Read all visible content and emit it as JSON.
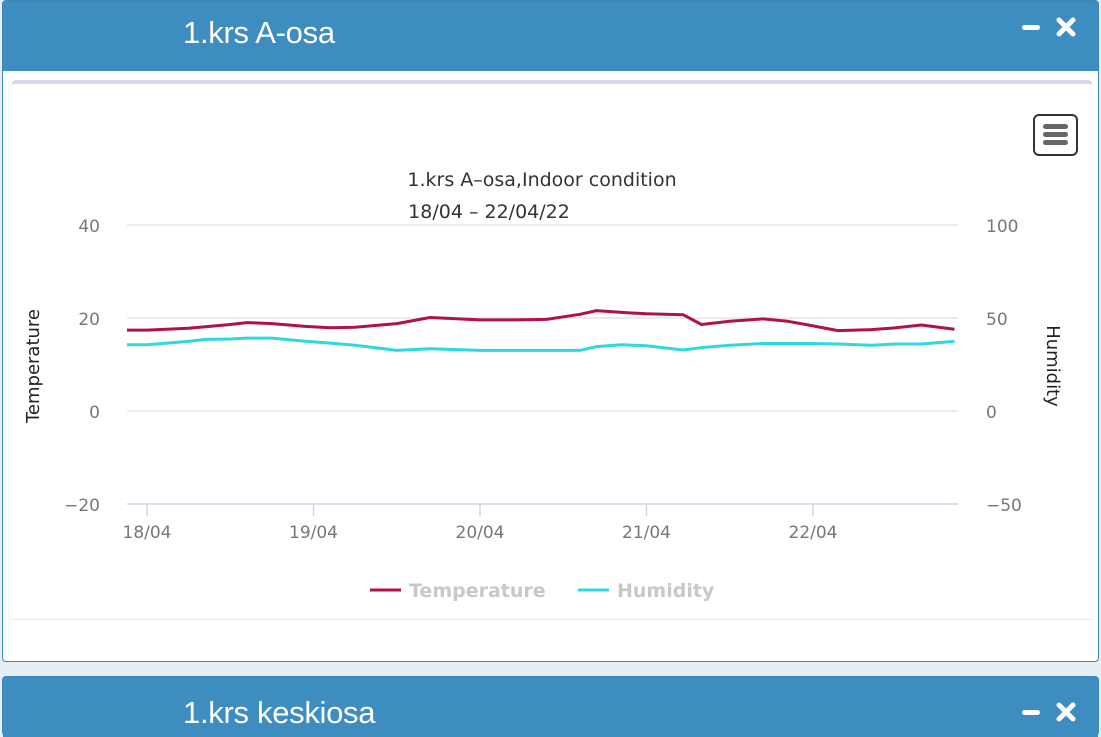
{
  "panels": [
    {
      "title": "1.krs A-osa",
      "controls": {
        "minimize": "minimize-icon",
        "close": "close-icon"
      },
      "chart_menu": "hamburger-menu-icon"
    },
    {
      "title": "1.krs keskiosa",
      "controls": {
        "minimize": "minimize-icon",
        "close": "close-icon"
      }
    }
  ],
  "colors": {
    "header": "#3d8dc0",
    "temperature": "#b0124f",
    "humidity": "#2ed8e0"
  },
  "chart_data": {
    "type": "line",
    "title": "1.krs A–osa,Indoor condition",
    "subtitle": "18/04 – 22/04/22",
    "xlabel": "",
    "x_ticks": [
      "18/04",
      "19/04",
      "20/04",
      "21/04",
      "22/04"
    ],
    "y_left": {
      "label": "Temperature",
      "ticks": [
        "40",
        "20",
        "0",
        "−20"
      ],
      "range": [
        -20,
        40
      ]
    },
    "y_right": {
      "label": "Humidity",
      "ticks": [
        "100",
        "50",
        "0",
        "−50"
      ],
      "range": [
        -50,
        100
      ]
    },
    "grid": true,
    "legend": {
      "position": "bottom",
      "entries": [
        "Temperature",
        "Humidity"
      ]
    },
    "x_days": [
      -0.12,
      0.0,
      0.25,
      0.35,
      0.5,
      0.6,
      0.75,
      0.95,
      1.1,
      1.25,
      1.5,
      1.7,
      2.0,
      2.2,
      2.4,
      2.6,
      2.7,
      2.85,
      3.0,
      3.22,
      3.33,
      3.5,
      3.7,
      3.85,
      4.0,
      4.15,
      4.35,
      4.5,
      4.65,
      4.85
    ],
    "series": [
      {
        "name": "Temperature",
        "axis": "left",
        "values": [
          17.4,
          17.4,
          17.8,
          18.1,
          18.6,
          19.0,
          18.8,
          18.2,
          17.9,
          18.0,
          18.8,
          20.1,
          19.6,
          19.6,
          19.7,
          20.8,
          21.6,
          21.2,
          20.9,
          20.7,
          18.6,
          19.3,
          19.8,
          19.3,
          18.3,
          17.3,
          17.5,
          17.9,
          18.5,
          17.6
        ]
      },
      {
        "name": "Humidity",
        "axis": "right",
        "values": [
          35.6,
          35.6,
          37.4,
          38.5,
          38.7,
          39.2,
          39.2,
          37.5,
          36.5,
          35.4,
          32.6,
          33.5,
          32.6,
          32.6,
          32.6,
          32.6,
          34.6,
          35.6,
          35.1,
          32.8,
          34.1,
          35.3,
          36.3,
          36.3,
          36.3,
          36.0,
          35.3,
          36.0,
          36.0,
          37.4
        ]
      }
    ]
  }
}
